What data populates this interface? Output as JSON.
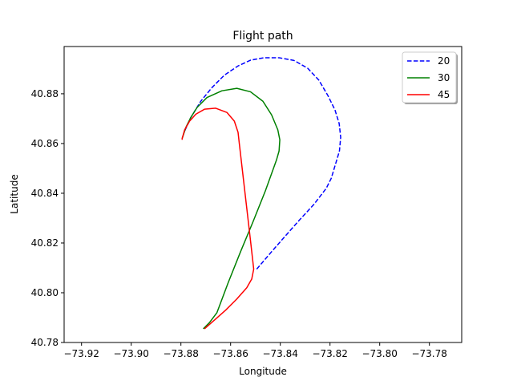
{
  "chart_data": {
    "type": "line",
    "title": "Flight path",
    "xlabel": "Longitude",
    "ylabel": "Latitude",
    "xlim": [
      -73.927,
      -73.767
    ],
    "ylim": [
      40.78,
      40.899
    ],
    "xticks": [
      -73.92,
      -73.9,
      -73.88,
      -73.86,
      -73.84,
      -73.82,
      -73.8,
      -73.78
    ],
    "xtick_labels": [
      "−73.92",
      "−73.90",
      "−73.88",
      "−73.86",
      "−73.84",
      "−73.82",
      "−73.80",
      "−73.78"
    ],
    "yticks": [
      40.78,
      40.8,
      40.82,
      40.84,
      40.86,
      40.88
    ],
    "ytick_labels": [
      "40.78",
      "40.80",
      "40.82",
      "40.84",
      "40.86",
      "40.88"
    ],
    "grid": false,
    "legend_position": "top-right",
    "series": [
      {
        "name": "20",
        "color": "#0000ff",
        "style": "dashed",
        "x": [
          -73.8495,
          -73.8435,
          -73.838,
          -73.8325,
          -73.8265,
          -73.8215,
          -73.8195,
          -73.818,
          -73.8162,
          -73.8157,
          -73.8163,
          -73.818,
          -73.8208,
          -73.8245,
          -73.829,
          -73.8345,
          -73.8405,
          -73.8465,
          -73.852,
          -73.857,
          -73.8625,
          -73.8675,
          -73.872,
          -73.876,
          -73.8785
        ],
        "y": [
          40.8095,
          40.8165,
          40.8228,
          40.829,
          40.8355,
          40.842,
          40.846,
          40.851,
          40.857,
          40.8625,
          40.868,
          40.8735,
          40.8792,
          40.8855,
          40.8903,
          40.8934,
          40.8945,
          40.8945,
          40.8935,
          40.8912,
          40.8875,
          40.8825,
          40.877,
          40.8705,
          40.865
        ]
      },
      {
        "name": "30",
        "color": "#008000",
        "style": "solid",
        "x": [
          -73.871,
          -73.8685,
          -73.8655,
          -73.861,
          -73.856,
          -73.851,
          -73.846,
          -73.8415,
          -73.8405,
          -73.8402,
          -73.841,
          -73.8435,
          -73.847,
          -73.852,
          -73.8575,
          -73.8635,
          -73.8695,
          -73.8735,
          -73.876,
          -73.878,
          -73.8795
        ],
        "y": [
          40.7855,
          40.788,
          40.792,
          40.804,
          40.8165,
          40.8285,
          40.841,
          40.8535,
          40.857,
          40.8615,
          40.8655,
          40.8715,
          40.877,
          40.8808,
          40.8822,
          40.8812,
          40.8785,
          40.8745,
          40.8705,
          40.8665,
          40.862
        ]
      },
      {
        "name": "45",
        "color": "#ff0000",
        "style": "solid",
        "x": [
          -73.8705,
          -73.8665,
          -73.862,
          -73.8575,
          -73.8535,
          -73.8515,
          -73.8507,
          -73.852,
          -73.8535,
          -73.855,
          -73.8565,
          -73.857,
          -73.8585,
          -73.8615,
          -73.866,
          -73.8705,
          -73.874,
          -73.8765,
          -73.8785,
          -73.8795,
          -73.8795
        ],
        "y": [
          40.7855,
          40.789,
          40.793,
          40.7975,
          40.802,
          40.8055,
          40.8095,
          40.821,
          40.834,
          40.847,
          40.86,
          40.8645,
          40.869,
          40.8725,
          40.8742,
          40.8738,
          40.8718,
          40.869,
          40.8655,
          40.862,
          40.8615
        ]
      }
    ]
  }
}
